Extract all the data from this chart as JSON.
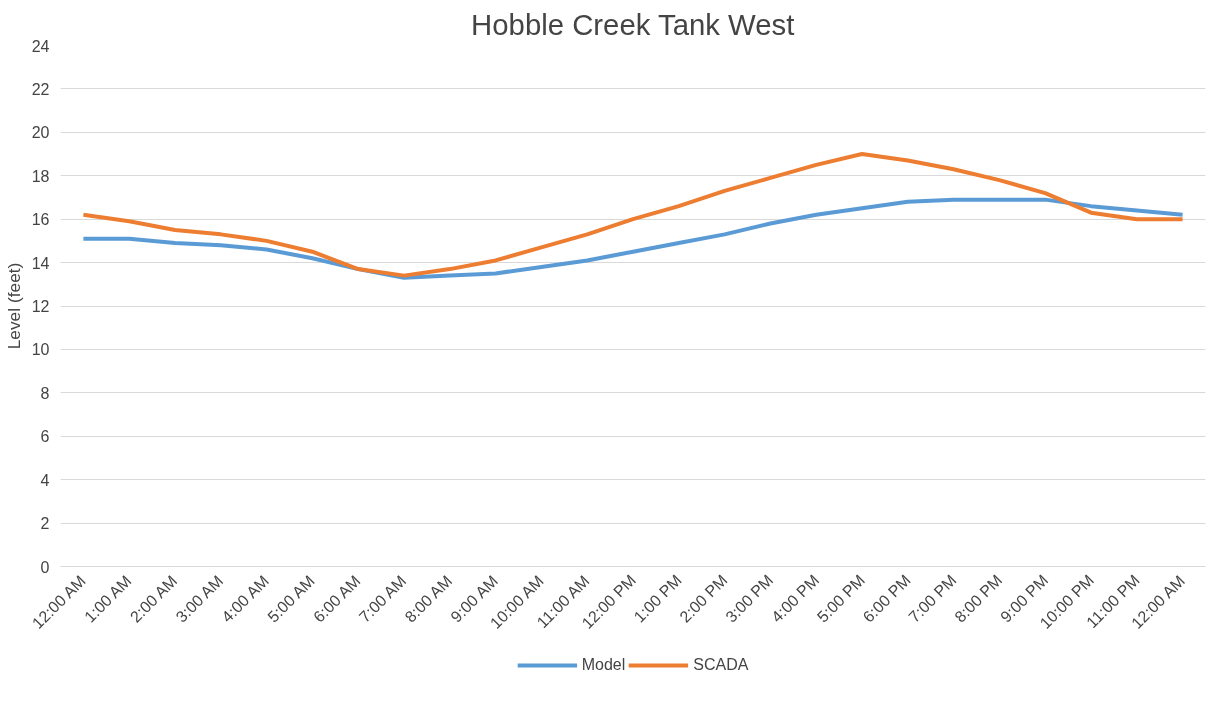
{
  "chart_data": {
    "type": "line",
    "title": "Hobble Creek Tank West",
    "ylabel": "Level (feet)",
    "categories": [
      "12:00 AM",
      "1:00 AM",
      "2:00 AM",
      "3:00 AM",
      "4:00 AM",
      "5:00 AM",
      "6:00 AM",
      "7:00 AM",
      "8:00 AM",
      "9:00 AM",
      "10:00 AM",
      "11:00 AM",
      "12:00 PM",
      "1:00 PM",
      "2:00 PM",
      "3:00 PM",
      "4:00 PM",
      "5:00 PM",
      "6:00 PM",
      "7:00 PM",
      "8:00 PM",
      "9:00 PM",
      "10:00 PM",
      "11:00 PM",
      "12:00 AM"
    ],
    "series": [
      {
        "name": "Model",
        "color": "#5b9bd5",
        "values": [
          15.1,
          15.1,
          14.9,
          14.8,
          14.6,
          14.2,
          13.7,
          13.3,
          13.4,
          13.5,
          13.8,
          14.1,
          14.5,
          14.9,
          15.3,
          15.8,
          16.2,
          16.5,
          16.8,
          16.9,
          16.9,
          16.9,
          16.6,
          16.4,
          16.2
        ]
      },
      {
        "name": "SCADA",
        "color": "#ed7d31",
        "values": [
          16.2,
          15.9,
          15.5,
          15.3,
          15.0,
          14.5,
          13.7,
          13.4,
          13.7,
          14.1,
          14.7,
          15.3,
          16.0,
          16.6,
          17.3,
          17.9,
          18.5,
          19.0,
          18.7,
          18.3,
          17.8,
          17.2,
          16.3,
          16.0,
          16.0
        ]
      }
    ],
    "ylim": [
      0,
      24
    ],
    "yticks": [
      0,
      2,
      4,
      6,
      8,
      10,
      12,
      14,
      16,
      18,
      20,
      22,
      24
    ],
    "grid": "y",
    "legend": "bottom",
    "marker": "none",
    "line_style": "solid"
  }
}
